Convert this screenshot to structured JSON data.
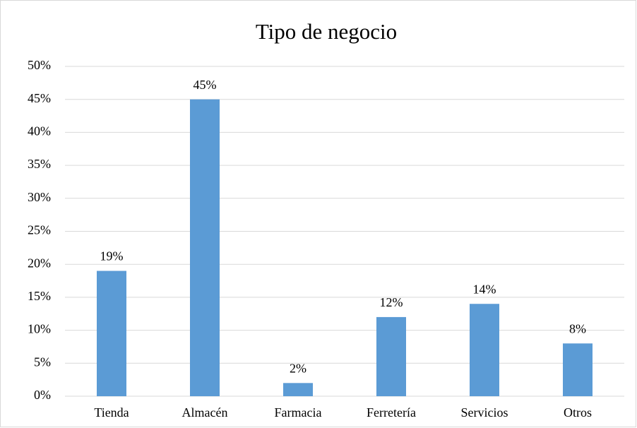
{
  "chart_data": {
    "type": "bar",
    "title": "Tipo de negocio",
    "categories": [
      "Tienda",
      "Almacén",
      "Farmacia",
      "Ferretería",
      "Servicios",
      "Otros"
    ],
    "values": [
      19,
      45,
      2,
      12,
      14,
      8
    ],
    "value_labels": [
      "19%",
      "45%",
      "2%",
      "12%",
      "14%",
      "8%"
    ],
    "color": "#5b9bd5",
    "ylim": [
      0,
      50
    ],
    "yticks": [
      {
        "value": 0,
        "label": "0%"
      },
      {
        "value": 5,
        "label": "5%"
      },
      {
        "value": 10,
        "label": "10%"
      },
      {
        "value": 15,
        "label": "15%"
      },
      {
        "value": 20,
        "label": "20%"
      },
      {
        "value": 25,
        "label": "25%"
      },
      {
        "value": 30,
        "label": "30%"
      },
      {
        "value": 35,
        "label": "35%"
      },
      {
        "value": 40,
        "label": "40%"
      },
      {
        "value": 45,
        "label": "45%"
      },
      {
        "value": 50,
        "label": "50%"
      }
    ],
    "grid": true
  }
}
